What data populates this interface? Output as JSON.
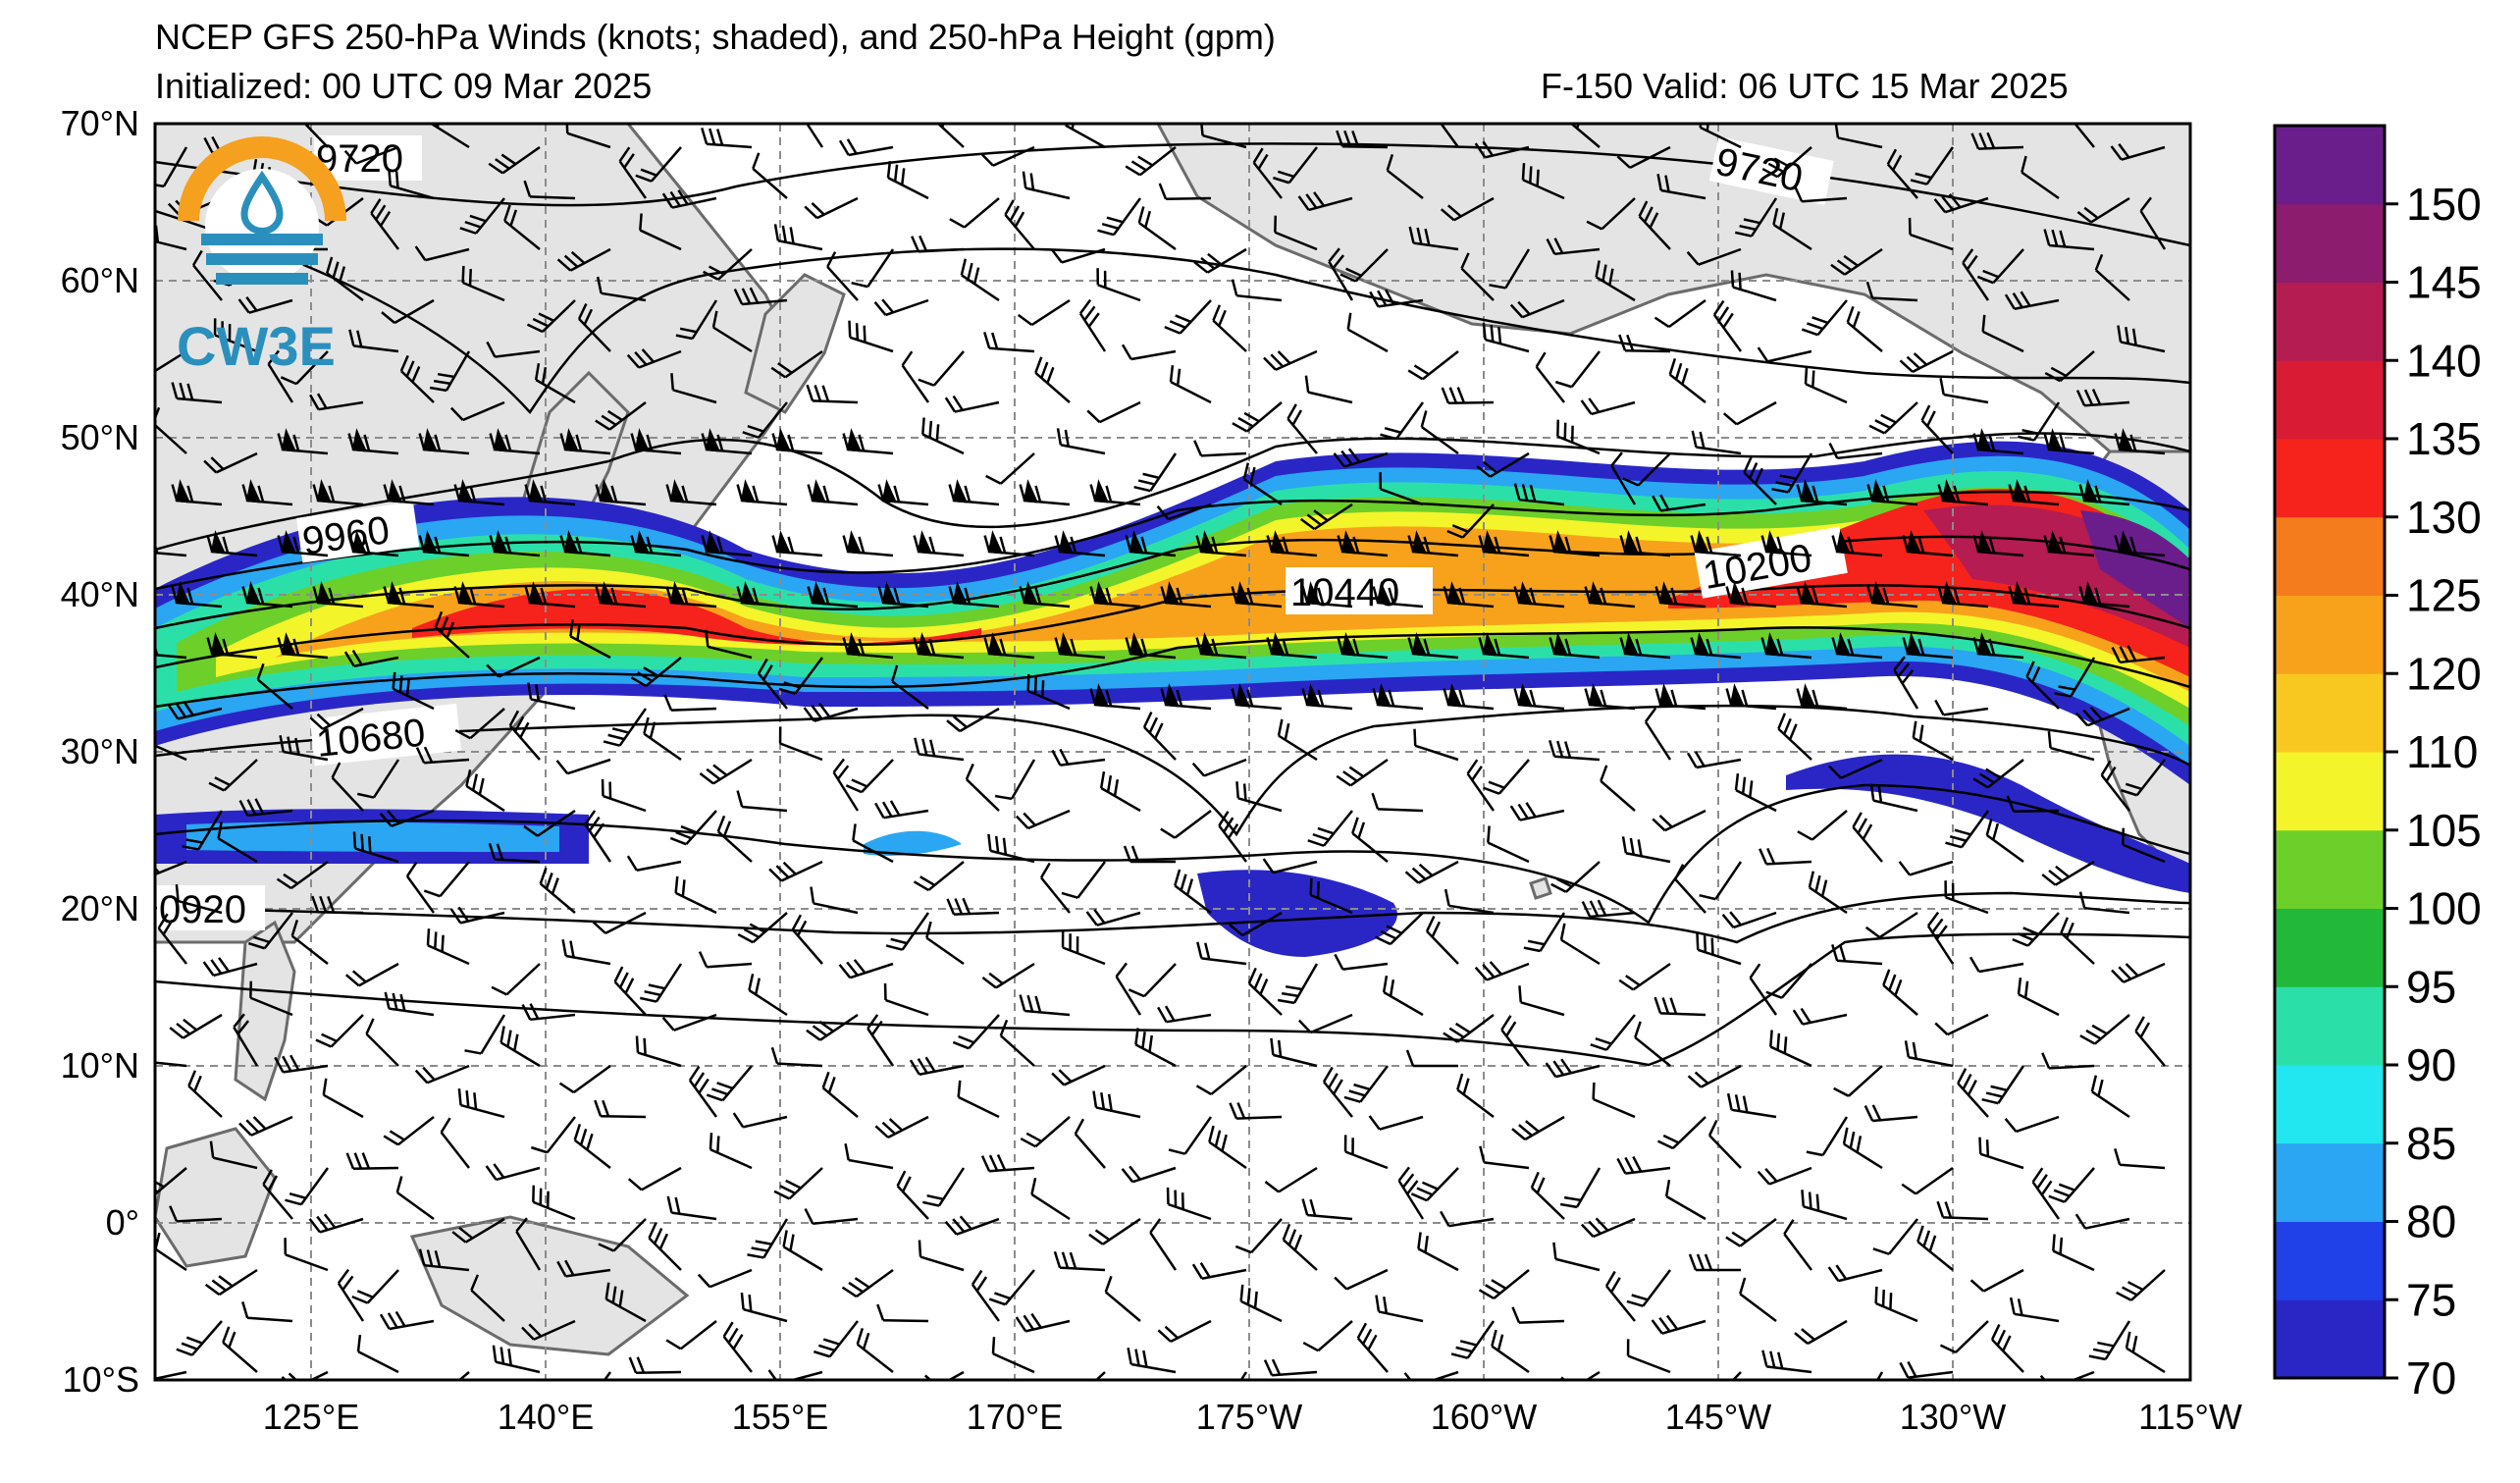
{
  "header": {
    "title": "NCEP GFS 250-hPa Winds (knots; shaded), and 250-hPa Height (gpm)",
    "initialized": "Initialized: 00 UTC 09 Mar 2025",
    "valid": "F-150  Valid: 06 UTC 15 Mar 2025"
  },
  "logo": {
    "text": "CW3E",
    "colors": {
      "orange": "#f5a01e",
      "blue": "#2b8fbd"
    }
  },
  "lat_labels": [
    "70°N",
    "60°N",
    "50°N",
    "40°N",
    "30°N",
    "20°N",
    "10°N",
    "0°",
    "10°S"
  ],
  "lon_labels": [
    "125°E",
    "140°E",
    "155°E",
    "170°E",
    "175°W",
    "160°W",
    "145°W",
    "130°W",
    "115°W"
  ],
  "contour_labels": [
    "9720",
    "9720",
    "9960",
    "10440",
    "10200",
    "10680",
    "0920"
  ],
  "colorbar": {
    "tick_labels": [
      "150",
      "145",
      "140",
      "135",
      "130",
      "125",
      "120",
      "110",
      "105",
      "100",
      "95",
      "90",
      "85",
      "80",
      "75",
      "70"
    ],
    "colors": [
      "#2a26c6",
      "#2040e8",
      "#2aa6f2",
      "#22e6f0",
      "#2be0a8",
      "#22b83a",
      "#6dcf2a",
      "#f4f42a",
      "#f8c820",
      "#f8a21c",
      "#f57c1c",
      "#f5231c",
      "#d91c34",
      "#b41c52",
      "#8c1c6e",
      "#6a1e8c"
    ]
  },
  "colors": {
    "land": "#e4e4e4",
    "coast": "#6b6b6b",
    "contour": "#000000",
    "grid": "#8c8c8c"
  }
}
